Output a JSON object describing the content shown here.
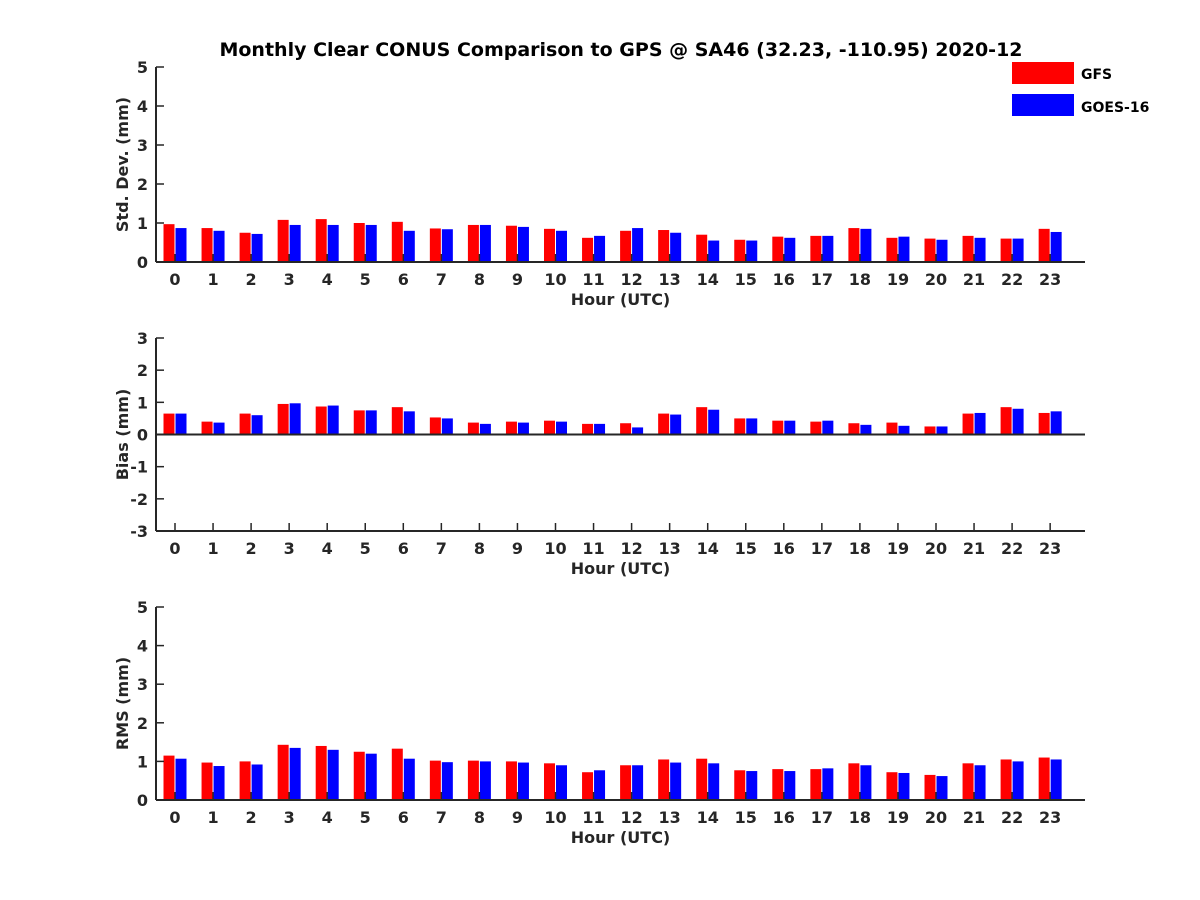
{
  "figure": {
    "title": "Monthly Clear CONUS Comparison to GPS @ SA46 (32.23, -110.95) 2020-12"
  },
  "legend": {
    "position": "top-right",
    "items": [
      {
        "label": "GFS",
        "color": "#ff0000"
      },
      {
        "label": "GOES-16",
        "color": "#0000ff"
      }
    ]
  },
  "chart_data": [
    {
      "type": "bar",
      "xlabel": "Hour (UTC)",
      "ylabel": "Std. Dev. (mm)",
      "ylim": [
        0,
        5
      ],
      "yticks": [
        0,
        1,
        2,
        3,
        4,
        5
      ],
      "categories": [
        "0",
        "1",
        "2",
        "3",
        "4",
        "5",
        "6",
        "7",
        "8",
        "9",
        "10",
        "11",
        "12",
        "13",
        "14",
        "15",
        "16",
        "17",
        "18",
        "19",
        "20",
        "21",
        "22",
        "23"
      ],
      "series": [
        {
          "name": "GFS",
          "color": "#ff0000",
          "values": [
            0.97,
            0.87,
            0.75,
            1.08,
            1.1,
            1.0,
            1.03,
            0.86,
            0.95,
            0.93,
            0.85,
            0.62,
            0.8,
            0.82,
            0.7,
            0.57,
            0.65,
            0.67,
            0.87,
            0.62,
            0.6,
            0.67,
            0.6,
            0.85
          ]
        },
        {
          "name": "GOES-16",
          "color": "#0000ff",
          "values": [
            0.87,
            0.8,
            0.72,
            0.95,
            0.95,
            0.95,
            0.8,
            0.84,
            0.95,
            0.9,
            0.8,
            0.67,
            0.87,
            0.75,
            0.55,
            0.55,
            0.62,
            0.67,
            0.85,
            0.65,
            0.57,
            0.62,
            0.6,
            0.77
          ]
        }
      ]
    },
    {
      "type": "bar",
      "xlabel": "Hour (UTC)",
      "ylabel": "Bias (mm)",
      "ylim": [
        -3,
        3
      ],
      "yticks": [
        -3,
        -2,
        -1,
        0,
        1,
        2,
        3
      ],
      "categories": [
        "0",
        "1",
        "2",
        "3",
        "4",
        "5",
        "6",
        "7",
        "8",
        "9",
        "10",
        "11",
        "12",
        "13",
        "14",
        "15",
        "16",
        "17",
        "18",
        "19",
        "20",
        "21",
        "22",
        "23"
      ],
      "series": [
        {
          "name": "GFS",
          "color": "#ff0000",
          "values": [
            0.65,
            0.4,
            0.65,
            0.95,
            0.87,
            0.75,
            0.85,
            0.53,
            0.37,
            0.4,
            0.43,
            0.33,
            0.35,
            0.65,
            0.85,
            0.5,
            0.43,
            0.4,
            0.35,
            0.37,
            0.25,
            0.65,
            0.85,
            0.67
          ]
        },
        {
          "name": "GOES-16",
          "color": "#0000ff",
          "values": [
            0.65,
            0.37,
            0.6,
            0.97,
            0.9,
            0.75,
            0.72,
            0.5,
            0.33,
            0.37,
            0.4,
            0.33,
            0.22,
            0.62,
            0.77,
            0.5,
            0.43,
            0.43,
            0.3,
            0.27,
            0.25,
            0.67,
            0.8,
            0.72
          ]
        }
      ]
    },
    {
      "type": "bar",
      "xlabel": "Hour (UTC)",
      "ylabel": "RMS (mm)",
      "ylim": [
        0,
        5
      ],
      "yticks": [
        0,
        1,
        2,
        3,
        4,
        5
      ],
      "categories": [
        "0",
        "1",
        "2",
        "3",
        "4",
        "5",
        "6",
        "7",
        "8",
        "9",
        "10",
        "11",
        "12",
        "13",
        "14",
        "15",
        "16",
        "17",
        "18",
        "19",
        "20",
        "21",
        "22",
        "23"
      ],
      "series": [
        {
          "name": "GFS",
          "color": "#ff0000",
          "values": [
            1.15,
            0.97,
            1.0,
            1.43,
            1.4,
            1.25,
            1.33,
            1.02,
            1.02,
            1.0,
            0.95,
            0.72,
            0.9,
            1.05,
            1.07,
            0.77,
            0.8,
            0.8,
            0.95,
            0.72,
            0.65,
            0.95,
            1.05,
            1.1
          ]
        },
        {
          "name": "GOES-16",
          "color": "#0000ff",
          "values": [
            1.07,
            0.88,
            0.92,
            1.35,
            1.3,
            1.2,
            1.07,
            0.98,
            1.0,
            0.97,
            0.9,
            0.77,
            0.9,
            0.97,
            0.95,
            0.75,
            0.75,
            0.82,
            0.9,
            0.7,
            0.62,
            0.9,
            1.0,
            1.05
          ]
        }
      ]
    }
  ]
}
